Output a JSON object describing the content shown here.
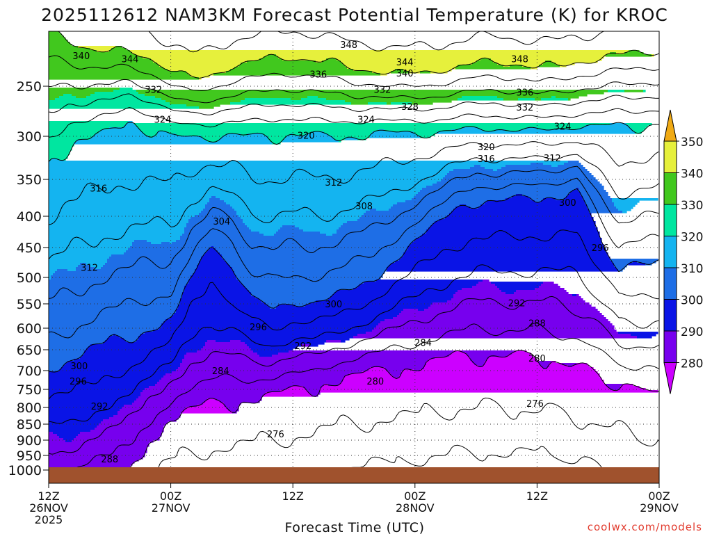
{
  "chart_data": {
    "type": "heatmap",
    "title": "2025112612 NAM3KM Forecast Potential Temperature (K) for KROC",
    "xlabel": "Forecast Time (UTC)",
    "credit": "coolwx.com/models",
    "y_axis": {
      "ticks": [
        250,
        300,
        350,
        400,
        450,
        500,
        550,
        600,
        650,
        700,
        750,
        800,
        850,
        900,
        950,
        1000
      ],
      "tick_labels": [
        "250",
        "300",
        "350",
        "400",
        "450",
        "500",
        "550",
        "600",
        "650",
        "700",
        "750",
        "800",
        "850",
        "900",
        "950",
        "1000"
      ],
      "range": [
        200,
        1020
      ]
    },
    "x_axis": {
      "range_hours": [
        0,
        60
      ],
      "ticks": [
        {
          "hour": 0,
          "lines": [
            "12Z",
            "26NOV",
            "2025"
          ]
        },
        {
          "hour": 12,
          "lines": [
            "00Z",
            "27NOV"
          ]
        },
        {
          "hour": 24,
          "lines": [
            "12Z"
          ]
        },
        {
          "hour": 36,
          "lines": [
            "00Z",
            "28NOV"
          ]
        },
        {
          "hour": 48,
          "lines": [
            "12Z"
          ]
        },
        {
          "hour": 60,
          "lines": [
            "00Z",
            "29NOV"
          ]
        }
      ]
    },
    "colorbar": {
      "levels": [
        280,
        290,
        300,
        310,
        320,
        330,
        340,
        350
      ],
      "labels": [
        "280",
        "290",
        "300",
        "310",
        "320",
        "330",
        "340",
        "350"
      ],
      "colors": [
        "#cc00ff",
        "#7700ee",
        "#0a14e6",
        "#1e6ee6",
        "#14b4f0",
        "#00e6a0",
        "#41c81e",
        "#e6f03c",
        "#f0aa14"
      ]
    },
    "ground_color": "#a0522d",
    "contour_labels": [
      {
        "t": 3.2,
        "p": 222,
        "text": "340"
      },
      {
        "t": 8.0,
        "p": 225,
        "text": "344"
      },
      {
        "t": 29.5,
        "p": 212,
        "text": "348"
      },
      {
        "t": 35.0,
        "p": 228,
        "text": "344"
      },
      {
        "t": 35.0,
        "p": 238,
        "text": "340"
      },
      {
        "t": 46.3,
        "p": 225,
        "text": "348"
      },
      {
        "t": 26.5,
        "p": 239,
        "text": "336"
      },
      {
        "t": 10.3,
        "p": 253,
        "text": "332"
      },
      {
        "t": 32.8,
        "p": 253,
        "text": "332"
      },
      {
        "t": 46.8,
        "p": 256,
        "text": "336"
      },
      {
        "t": 35.5,
        "p": 270,
        "text": "328"
      },
      {
        "t": 46.8,
        "p": 271,
        "text": "332"
      },
      {
        "t": 11.2,
        "p": 283,
        "text": "324"
      },
      {
        "t": 31.2,
        "p": 283,
        "text": "324"
      },
      {
        "t": 50.5,
        "p": 290,
        "text": "324"
      },
      {
        "t": 25.3,
        "p": 299,
        "text": "320"
      },
      {
        "t": 43.0,
        "p": 312,
        "text": "320"
      },
      {
        "t": 43.0,
        "p": 326,
        "text": "316"
      },
      {
        "t": 49.5,
        "p": 325,
        "text": "312"
      },
      {
        "t": 4.9,
        "p": 362,
        "text": "316"
      },
      {
        "t": 28.0,
        "p": 354,
        "text": "312"
      },
      {
        "t": 31.0,
        "p": 386,
        "text": "308"
      },
      {
        "t": 51.0,
        "p": 381,
        "text": "300"
      },
      {
        "t": 17.0,
        "p": 408,
        "text": "304"
      },
      {
        "t": 54.2,
        "p": 450,
        "text": "296"
      },
      {
        "t": 4.0,
        "p": 483,
        "text": "312"
      },
      {
        "t": 28.0,
        "p": 550,
        "text": "300"
      },
      {
        "t": 46.0,
        "p": 548,
        "text": "292"
      },
      {
        "t": 48.0,
        "p": 589,
        "text": "288"
      },
      {
        "t": 20.6,
        "p": 597,
        "text": "296"
      },
      {
        "t": 36.8,
        "p": 633,
        "text": "284"
      },
      {
        "t": 25.0,
        "p": 640,
        "text": "292"
      },
      {
        "t": 48.0,
        "p": 670,
        "text": "280"
      },
      {
        "t": 3.0,
        "p": 688,
        "text": "300"
      },
      {
        "t": 16.9,
        "p": 700,
        "text": "284"
      },
      {
        "t": 2.9,
        "p": 728,
        "text": "296"
      },
      {
        "t": 32.1,
        "p": 728,
        "text": "280"
      },
      {
        "t": 5.0,
        "p": 796,
        "text": "292"
      },
      {
        "t": 47.8,
        "p": 788,
        "text": "276"
      },
      {
        "t": 22.3,
        "p": 880,
        "text": "276"
      },
      {
        "t": 6.0,
        "p": 962,
        "text": "288"
      }
    ]
  }
}
